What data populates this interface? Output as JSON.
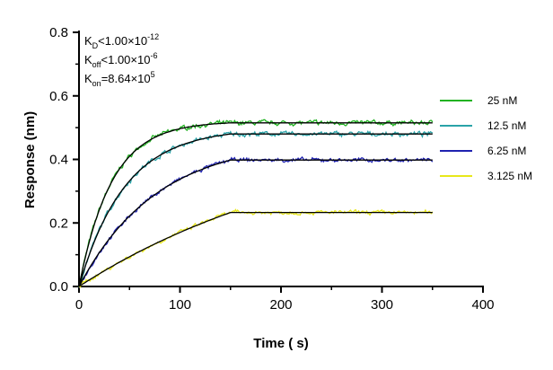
{
  "chart_data": {
    "type": "line",
    "xlabel": "Time ( s)",
    "ylabel": "Response (nm)",
    "xlim": [
      0,
      400
    ],
    "ylim": [
      0,
      0.8
    ],
    "xticks": [
      "0",
      "100",
      "200",
      "300",
      "400"
    ],
    "yticks": [
      "0.0",
      "0.2",
      "0.4",
      "0.6",
      "0.8"
    ],
    "grid": false,
    "legend_position": "right",
    "association_end_s": 150,
    "end_s": 350,
    "annotations": {
      "kd": {
        "sym": "K",
        "sub": "D",
        "rel": "<1.00×10",
        "exp": "-12"
      },
      "koff": {
        "sym": "K",
        "sub": "off",
        "rel": "<1.00×10",
        "exp": "-6"
      },
      "kon": {
        "sym": "K",
        "sub": "on",
        "rel": "=8.64×10",
        "exp": "5"
      }
    },
    "fit_color": "#000000",
    "series": [
      {
        "name": "25 nM",
        "color": "#22b322",
        "plateau": 0.515,
        "k_obs": 0.031,
        "noise": 0.006
      },
      {
        "name": "12.5 nM",
        "color": "#2aa3a8",
        "plateau": 0.48,
        "k_obs": 0.022,
        "noise": 0.006
      },
      {
        "name": "6.25 nM",
        "color": "#1f22b0",
        "plateau": 0.398,
        "k_obs": 0.013,
        "noise": 0.005
      },
      {
        "name": "3.125 nM",
        "color": "#e8e81a",
        "plateau": 0.233,
        "k_obs": 0.004,
        "noise": 0.005
      }
    ]
  }
}
